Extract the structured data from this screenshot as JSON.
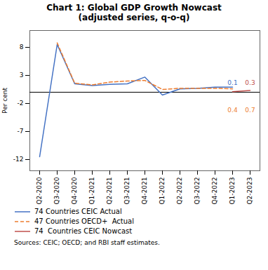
{
  "chart_data": {
    "type": "line",
    "title": "Chart 1: Global GDP Growth Nowcast\n(adjusted series, q-o-q)",
    "ylabel": "Per cent",
    "source": "Sources: CEIC; OECD; and RBI staff estimates.",
    "categories": [
      "Q2-2020",
      "Q3-2020",
      "Q4-2020",
      "Q1-2021",
      "Q2-2021",
      "Q3-2021",
      "Q4-2021",
      "Q1-2022",
      "Q2-2022",
      "Q3-2022",
      "Q4-2022",
      "Q1-2023",
      "Q2-2023"
    ],
    "series": [
      {
        "name": "74 Countries CEIC Actual",
        "color": "#4472c4",
        "line_style": "solid",
        "values": [
          -11.5,
          8.5,
          1.5,
          1.2,
          1.4,
          1.5,
          2.7,
          -0.5,
          0.6,
          0.7,
          0.9,
          0.9,
          null
        ]
      },
      {
        "name": "47 Countries OECD+  Actual",
        "color": "#ed7d31",
        "line_style": "dashed",
        "values": [
          null,
          8.8,
          1.6,
          1.3,
          1.8,
          2.0,
          2.1,
          0.5,
          0.7,
          0.7,
          0.7,
          0.6,
          null
        ]
      },
      {
        "name": "74  Countries CEIC Nowcast",
        "color": "#c0504d",
        "line_style": "solid",
        "values": [
          null,
          null,
          null,
          null,
          null,
          null,
          null,
          null,
          null,
          null,
          null,
          0.1,
          0.3
        ]
      }
    ],
    "hlines": [
      0
    ],
    "annotations": [
      {
        "text": "0.1",
        "x": "Q1-2023",
        "y": 1.3,
        "color": "#4472c4"
      },
      {
        "text": "0.3",
        "x": "Q2-2023",
        "y": 1.3,
        "color": "#c0504d"
      },
      {
        "text": "0.4",
        "x": "Q1-2023",
        "y": -2.8,
        "color": "#ed7d31"
      },
      {
        "text": "0.7",
        "x": "Q2-2023",
        "y": -2.8,
        "color": "#ed7d31"
      }
    ],
    "ylim": [
      -14,
      11
    ],
    "yticks": [
      -12,
      -7,
      -2,
      3,
      8
    ],
    "grid": false,
    "legend": "bottom"
  }
}
